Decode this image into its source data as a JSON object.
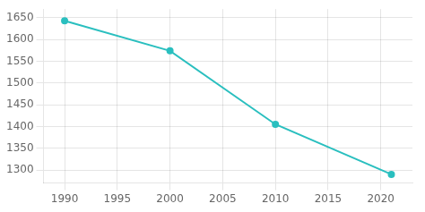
{
  "chart_data": {
    "type": "line",
    "x": [
      1990,
      2000,
      2010,
      2021
    ],
    "values": [
      1643,
      1574,
      1405,
      1290
    ],
    "color": "#2abfbf",
    "marker": "circle",
    "xlim": [
      1988,
      2023
    ],
    "xticks": [
      1990,
      1995,
      2000,
      2005,
      2010,
      2015,
      2020
    ],
    "ylim": [
      1270,
      1670
    ],
    "yticks": [
      1300,
      1350,
      1400,
      1450,
      1500,
      1550,
      1600,
      1650
    ],
    "grid": true
  }
}
